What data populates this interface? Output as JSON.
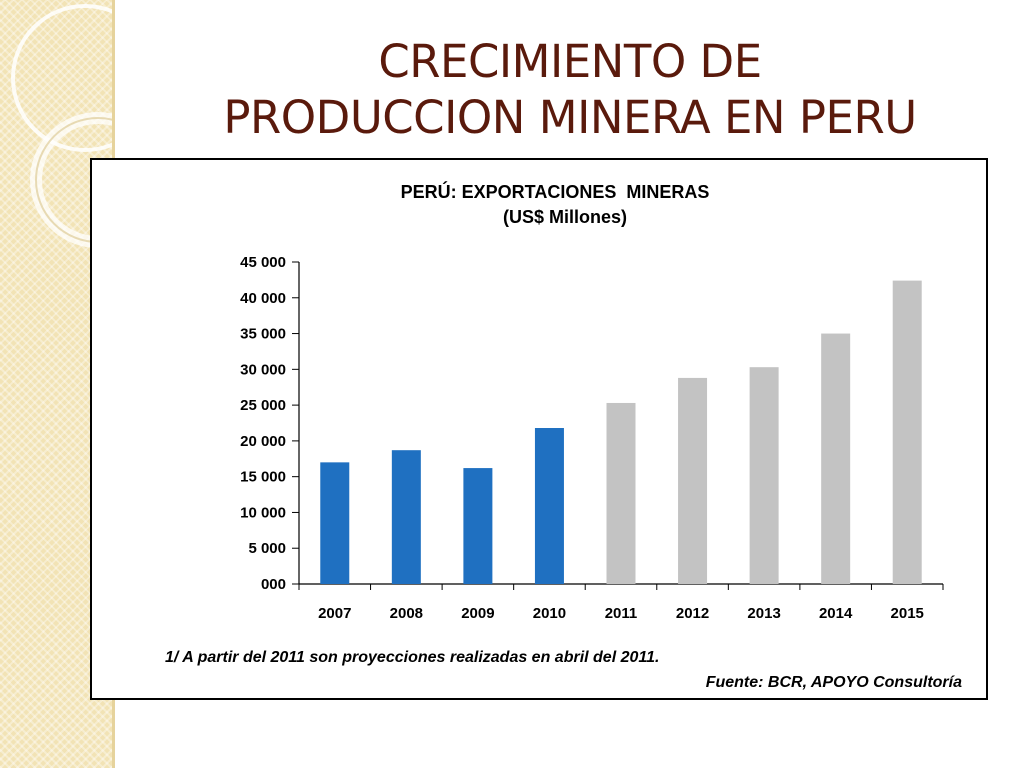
{
  "slide": {
    "title_line1": "CRECIMIENTO DE",
    "title_line2": "PRODUCCION MINERA EN PERU"
  },
  "chart_data": {
    "type": "bar",
    "title": "PERÚ: EXPORTACIONES  MINERAS",
    "subtitle": "(US$ Millones)",
    "categories": [
      "2007",
      "2008",
      "2009",
      "2010",
      "2011",
      "2012",
      "2013",
      "2014",
      "2015"
    ],
    "values": [
      17000,
      18700,
      16200,
      21800,
      25300,
      28800,
      30300,
      35000,
      42400
    ],
    "projected_from_index": 4,
    "colors": {
      "actual": "#1f70c1",
      "projected": "#c3c3c3"
    },
    "ylim": [
      0,
      45000
    ],
    "yticks": [
      {
        "value": 0,
        "label": "000"
      },
      {
        "value": 5000,
        "label": "5 000"
      },
      {
        "value": 10000,
        "label": "10 000"
      },
      {
        "value": 15000,
        "label": "15 000"
      },
      {
        "value": 20000,
        "label": "20 000"
      },
      {
        "value": 25000,
        "label": "25 000"
      },
      {
        "value": 30000,
        "label": "30 000"
      },
      {
        "value": 35000,
        "label": "35 000"
      },
      {
        "value": 40000,
        "label": "40 000"
      },
      {
        "value": 45000,
        "label": "45 000"
      }
    ],
    "grid": false,
    "legend": "none",
    "footnote": "1/ A partir del 2011 son proyecciones realizadas en abril del 2011.",
    "source": "Fuente: BCR, APOYO Consultoría"
  }
}
